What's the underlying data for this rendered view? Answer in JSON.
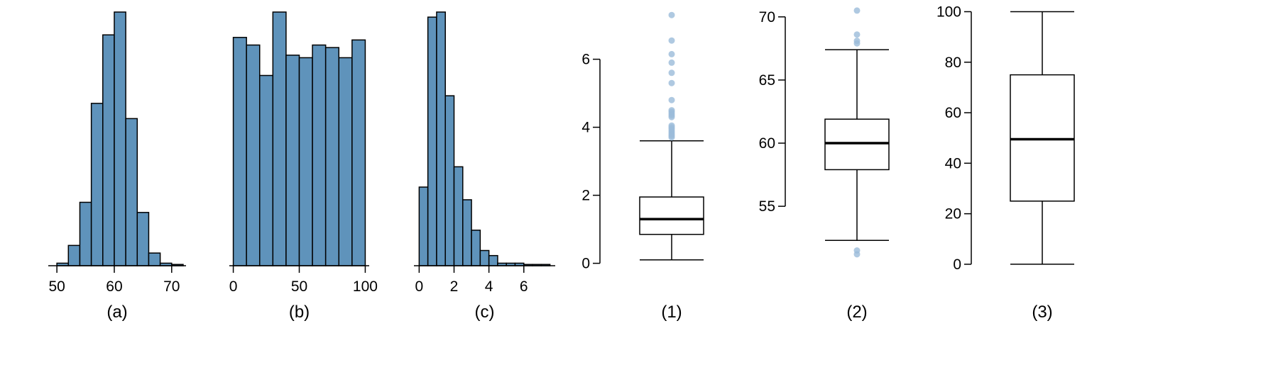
{
  "chart_data": [
    {
      "type": "bar",
      "subtype": "histogram",
      "label": "(a)",
      "bin_edges": [
        50,
        52,
        54,
        56,
        58,
        60,
        62,
        64,
        66,
        68,
        70,
        72
      ],
      "values": [
        1,
        8,
        25,
        64,
        91,
        100,
        58,
        21,
        5,
        1,
        0.5
      ],
      "value_scale": "relative frequency (tallest bar = 100)",
      "x_ticks": [
        50,
        60,
        70
      ],
      "xlim": [
        48.5,
        72.5
      ]
    },
    {
      "type": "bar",
      "subtype": "histogram",
      "label": "(b)",
      "bin_edges": [
        0,
        10,
        20,
        30,
        40,
        50,
        60,
        70,
        80,
        90,
        100
      ],
      "values": [
        90,
        87,
        75,
        100,
        83,
        82,
        87,
        86,
        82,
        89
      ],
      "value_scale": "relative frequency (tallest bar = 100)",
      "x_ticks": [
        0,
        50,
        100
      ],
      "xlim": [
        -3,
        103
      ]
    },
    {
      "type": "bar",
      "subtype": "histogram",
      "label": "(c)",
      "bin_edges": [
        0,
        0.5,
        1,
        1.5,
        2,
        2.5,
        3,
        3.5,
        4,
        4.5,
        5,
        5.5,
        6,
        6.5,
        7,
        7.5
      ],
      "values": [
        31,
        98,
        100,
        67,
        39,
        26,
        14,
        6,
        4,
        1,
        1,
        1,
        0.5,
        0.5,
        0.5
      ],
      "value_scale": "relative frequency (tallest bar = 100)",
      "x_ticks": [
        0,
        2,
        4,
        6
      ],
      "xlim": [
        -0.3,
        7.8
      ]
    },
    {
      "type": "boxplot",
      "label": "(1)",
      "ylim": [
        -0.05,
        7.45
      ],
      "y_ticks": [
        0,
        2,
        4,
        6
      ],
      "min": 0.1,
      "q1": 0.85,
      "median": 1.3,
      "q3": 1.95,
      "max": 3.6,
      "outliers": [
        7.3,
        6.55,
        6.15,
        5.9,
        5.6,
        5.3,
        4.8,
        4.5,
        4.45,
        4.4,
        4.35,
        4.3,
        4.05,
        4.0,
        3.95,
        3.9,
        3.85,
        3.8,
        3.75,
        3.7
      ]
    },
    {
      "type": "boxplot",
      "label": "(2)",
      "ylim": [
        50.35,
        70.55
      ],
      "y_ticks": [
        55,
        60,
        65,
        70
      ],
      "min": 52.3,
      "q1": 57.9,
      "median": 60.0,
      "q3": 61.9,
      "max": 67.4,
      "outliers": [
        70.5,
        68.6,
        68.1,
        67.9,
        51.5,
        51.2
      ]
    },
    {
      "type": "boxplot",
      "label": "(3)",
      "ylim": [
        -0.3,
        100.7
      ],
      "y_ticks": [
        0,
        20,
        40,
        60,
        80,
        100
      ],
      "min": 0,
      "q1": 25,
      "median": 49.5,
      "q3": 75,
      "max": 100,
      "outliers": []
    }
  ],
  "colors": {
    "bar_fill": "#5f93bb",
    "outlier": "#9bbcd9",
    "stroke": "#000000"
  }
}
